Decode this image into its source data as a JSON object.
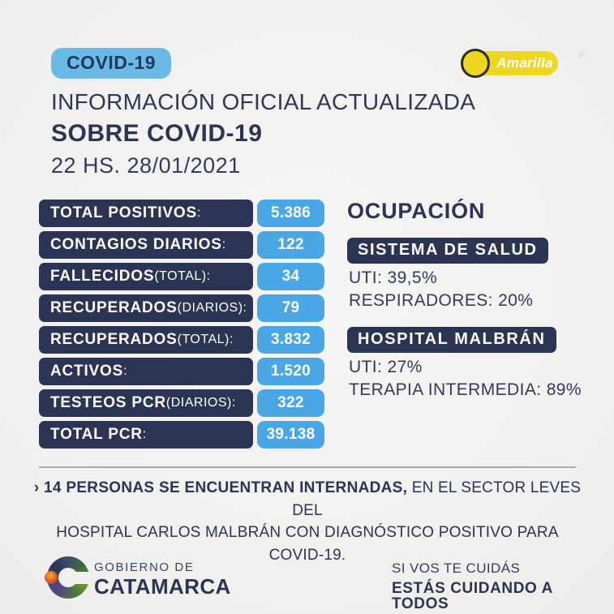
{
  "colors": {
    "background": "#f2f1ef",
    "navy": "#2b3453",
    "value_blue": "#49a7e5",
    "covid_badge_blue": "#6bb9e7",
    "status_yellow": "#efd621",
    "white": "#ffffff"
  },
  "header": {
    "covid_badge": "COVID-19",
    "status_badge": "Amarilla",
    "watermark": "✳",
    "title_line1": "INFORMACIÓN OFICIAL ACTUALIZADA",
    "title_line2": "SOBRE COVID-19",
    "subtitle": "22 HS. 28/01/2021"
  },
  "stats": {
    "rows": [
      {
        "strong": "TOTAL POSITIVOS",
        "light": ":",
        "value": "5.386"
      },
      {
        "strong": "CONTAGIOS DIARIOS",
        "light": ":",
        "value": "122"
      },
      {
        "strong": "FALLECIDOS",
        "light": " (TOTAL):",
        "value": "34"
      },
      {
        "strong": "RECUPERADOS",
        "light": " (DIARIOS):",
        "value": "79"
      },
      {
        "strong": "RECUPERADOS",
        "light": " (TOTAL):",
        "value": "3.832"
      },
      {
        "strong": "ACTIVOS",
        "light": ":",
        "value": "1.520"
      },
      {
        "strong": "TESTEOS PCR",
        "light": " (DIARIOS):",
        "value": "322"
      },
      {
        "strong": "TOTAL PCR",
        "light": ":",
        "value": "39.138"
      }
    ]
  },
  "occupancy": {
    "heading": "OCUPACIÓN",
    "sections": [
      {
        "badge": "SISTEMA DE SALUD",
        "line1": "UTI: 39,5%",
        "line2": "RESPIRADORES: 20%"
      },
      {
        "badge": "HOSPITAL MALBRÁN",
        "line1": "UTI: 27%",
        "line2": "TERAPIA INTERMEDIA: 89%"
      }
    ]
  },
  "note": {
    "line1_bold": "› 14 PERSONAS SE ENCUENTRAN INTERNADAS,",
    "line1_rest": " EN EL SECTOR LEVES DEL",
    "line2": "HOSPITAL CARLOS MALBRÁN CON DIAGNÓSTICO POSITIVO PARA COVID-19."
  },
  "footer": {
    "gov_small": "GOBIERNO DE",
    "gov_big": "CATAMARCA",
    "slogan_top": "SI VOS TE CUIDÁS",
    "slogan_bottom": "ESTÁS CUIDANDO A TODOS"
  }
}
